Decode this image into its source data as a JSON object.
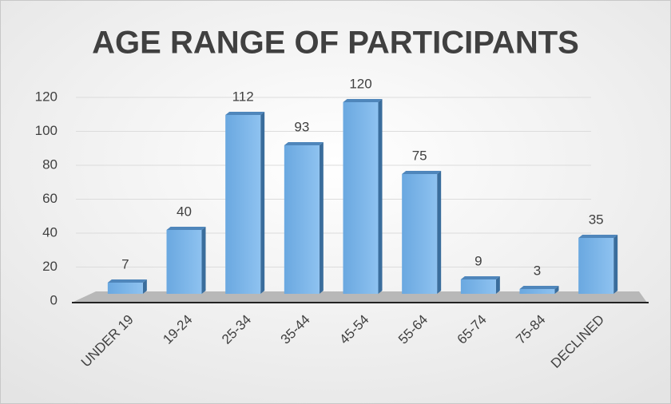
{
  "chart_data": {
    "type": "bar",
    "title": "AGE RANGE OF PARTICIPANTS",
    "categories": [
      "UNDER 19",
      "19-24",
      "25-34",
      "35-44",
      "45-54",
      "55-64",
      "65-74",
      "75-84",
      "DECLINED"
    ],
    "values": [
      7,
      40,
      112,
      93,
      120,
      75,
      9,
      3,
      35
    ],
    "color": "#5b9bd5",
    "ylim": [
      0,
      120
    ],
    "yticks": [
      0,
      20,
      40,
      60,
      80,
      100,
      120
    ],
    "grid": true
  }
}
